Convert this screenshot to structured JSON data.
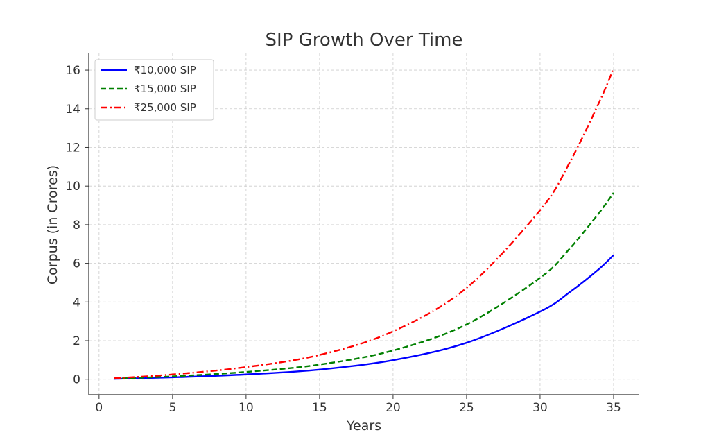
{
  "chart_data": {
    "type": "line",
    "title": "SIP Growth Over Time",
    "xlabel": "Years",
    "ylabel": "Corpus (in Crores)",
    "xlim": [
      -0.7,
      36.7
    ],
    "ylim": [
      -0.8,
      16.9
    ],
    "xticks": [
      0,
      5,
      10,
      15,
      20,
      25,
      30,
      35
    ],
    "yticks": [
      0,
      2,
      4,
      6,
      8,
      10,
      12,
      14,
      16
    ],
    "grid": true,
    "legend_position": "top-left",
    "x": [
      1,
      5,
      10,
      15,
      20,
      25,
      30,
      32,
      34,
      35
    ],
    "series": [
      {
        "name": "₹10,000 SIP",
        "color": "#0000ff",
        "style": "solid",
        "values": [
          0.02,
          0.1,
          0.25,
          0.5,
          0.99,
          1.89,
          3.5,
          4.5,
          5.7,
          6.43
        ]
      },
      {
        "name": "₹15,000 SIP",
        "color": "#008000",
        "style": "dashed",
        "values": [
          0.03,
          0.15,
          0.38,
          0.76,
          1.49,
          2.84,
          5.25,
          6.75,
          8.6,
          9.65
        ]
      },
      {
        "name": "₹25,000 SIP",
        "color": "#ff0000",
        "style": "dashdot",
        "values": [
          0.05,
          0.25,
          0.63,
          1.26,
          2.48,
          4.73,
          8.75,
          11.2,
          14.3,
          16.08
        ]
      }
    ]
  }
}
